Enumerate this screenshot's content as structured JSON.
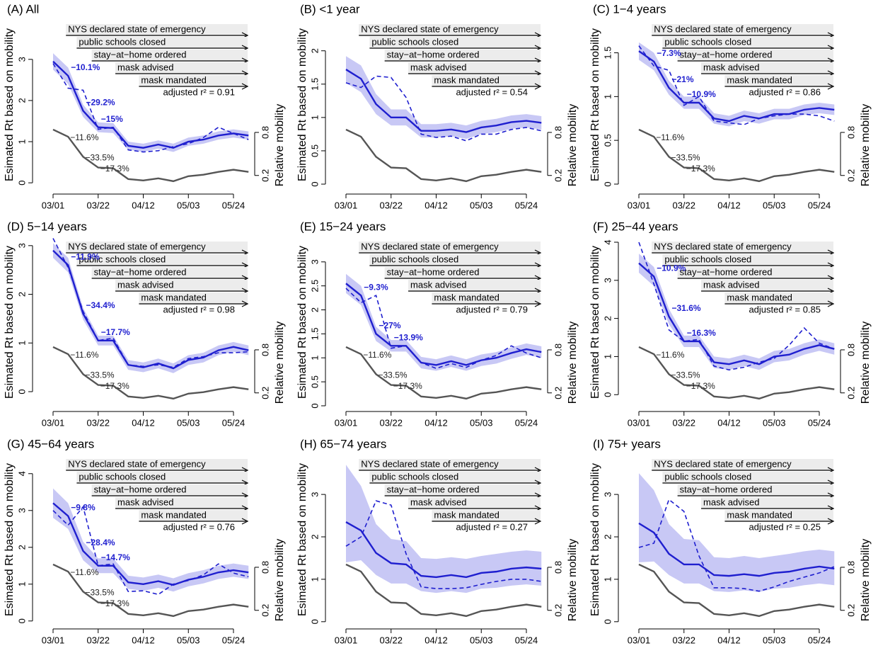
{
  "shared": {
    "categories": [
      "03/01",
      null,
      null,
      "03/22",
      null,
      null,
      "04/12",
      null,
      null,
      "05/03",
      null,
      null,
      "05/24",
      null
    ],
    "ylabel": "Esimated Rt based on mobility",
    "y2label": "Relative mobility",
    "events": [
      {
        "label": "NYS declared state of emergency",
        "start": "03/07"
      },
      {
        "label": "public schools closed",
        "start": "03/12"
      },
      {
        "label": "stay−at−home ordered",
        "start": "03/19"
      },
      {
        "label": "mask advised",
        "start": "03/30"
      },
      {
        "label": "mask mandated",
        "start": "04/10"
      }
    ]
  },
  "chart_data": [
    {
      "type": "line",
      "title": "(A) All",
      "ylim": [
        -0.17,
        3.84
      ],
      "yticks": [
        0,
        1,
        2,
        3
      ],
      "y2lim": [
        0,
        2.3
      ],
      "y2ticks": [
        0.2,
        0.8
      ],
      "r2_label": "adjusted r² = 0.91",
      "band": {
        "color": "#c8c8f5",
        "lower": [
          2.75,
          2.4,
          1.6,
          1.23,
          1.21,
          0.8,
          0.75,
          0.83,
          0.75,
          0.9,
          0.95,
          1.05,
          1.1,
          1.05
        ],
        "upper": [
          3.15,
          2.8,
          1.9,
          1.47,
          1.45,
          1.0,
          0.95,
          1.03,
          0.95,
          1.1,
          1.15,
          1.25,
          1.3,
          1.25
        ]
      },
      "series": [
        {
          "color": "#555555",
          "axis": "y2",
          "values": [
            0.84,
            0.74,
            0.46,
            0.31,
            0.3,
            0.15,
            0.13,
            0.16,
            0.12,
            0.19,
            0.21,
            0.25,
            0.28,
            0.25
          ]
        },
        {
          "color": "#1f1fcf",
          "dash": true,
          "values": [
            2.9,
            2.3,
            2.25,
            1.3,
            1.35,
            0.8,
            0.75,
            0.78,
            0.88,
            0.95,
            1.1,
            1.35,
            1.2,
            1.05
          ]
        },
        {
          "color": "#1f1fcf",
          "values": [
            2.95,
            2.6,
            1.75,
            1.35,
            1.33,
            0.9,
            0.85,
            0.93,
            0.85,
            1.0,
            1.05,
            1.15,
            1.2,
            1.15
          ]
        }
      ],
      "rt_labels": [
        "−10.1%",
        "−29.2%",
        "−15%"
      ],
      "mobility_labels": [
        "−11.6%",
        "−33.5%",
        "−17.3%"
      ]
    },
    {
      "type": "line",
      "title": "(B) <1 year",
      "ylim": [
        -0.085,
        2.39
      ],
      "yticks": [
        0,
        0.5,
        1,
        1.5,
        2
      ],
      "y2lim": [
        0,
        2.3
      ],
      "y2ticks": [
        0.2,
        0.8
      ],
      "r2_label": "adjusted r² = 0.54",
      "band": {
        "color": "#c8c8f5",
        "lower": [
          1.52,
          1.38,
          1.05,
          0.88,
          0.88,
          0.7,
          0.7,
          0.72,
          0.68,
          0.75,
          0.78,
          0.83,
          0.85,
          0.82
        ],
        "upper": [
          1.92,
          1.78,
          1.35,
          1.12,
          1.12,
          0.9,
          0.9,
          0.92,
          0.88,
          0.95,
          0.98,
          1.03,
          1.05,
          1.02
        ]
      },
      "series": [
        {
          "color": "#555555",
          "axis": "y2",
          "values": [
            0.84,
            0.74,
            0.46,
            0.31,
            0.3,
            0.15,
            0.13,
            0.16,
            0.12,
            0.19,
            0.21,
            0.25,
            0.28,
            0.25
          ]
        },
        {
          "color": "#1f1fcf",
          "dash": true,
          "values": [
            1.52,
            1.45,
            1.62,
            1.6,
            1.3,
            0.75,
            0.7,
            0.72,
            0.65,
            0.75,
            0.75,
            0.82,
            0.85,
            0.8
          ]
        },
        {
          "color": "#1f1fcf",
          "values": [
            1.72,
            1.58,
            1.2,
            1.0,
            1.0,
            0.8,
            0.8,
            0.82,
            0.78,
            0.85,
            0.88,
            0.93,
            0.95,
            0.92
          ]
        }
      ],
      "rt_labels": [],
      "mobility_labels": []
    },
    {
      "type": "line",
      "title": "(C) 1−4 years",
      "ylim": [
        -0.065,
        1.82
      ],
      "yticks": [
        0,
        0.5,
        1,
        1.5
      ],
      "y2lim": [
        0,
        2.3
      ],
      "y2ticks": [
        0.2,
        0.8
      ],
      "r2_label": "adjusted r² = 0.86",
      "band": {
        "color": "#c8c8f5",
        "lower": [
          1.42,
          1.3,
          1.02,
          0.86,
          0.86,
          0.69,
          0.66,
          0.72,
          0.69,
          0.74,
          0.74,
          0.79,
          0.81,
          0.79
        ],
        "upper": [
          1.62,
          1.5,
          1.18,
          1.0,
          1.0,
          0.81,
          0.78,
          0.84,
          0.81,
          0.86,
          0.86,
          0.91,
          0.93,
          0.91
        ]
      },
      "series": [
        {
          "color": "#555555",
          "axis": "y2",
          "values": [
            0.84,
            0.74,
            0.46,
            0.31,
            0.3,
            0.15,
            0.13,
            0.16,
            0.12,
            0.19,
            0.21,
            0.25,
            0.28,
            0.25
          ]
        },
        {
          "color": "#1f1fcf",
          "dash": true,
          "values": [
            1.58,
            1.35,
            1.3,
            0.9,
            1.0,
            0.72,
            0.7,
            0.68,
            0.75,
            0.78,
            0.8,
            0.8,
            0.78,
            0.72
          ]
        },
        {
          "color": "#1f1fcf",
          "values": [
            1.52,
            1.4,
            1.1,
            0.93,
            0.93,
            0.75,
            0.72,
            0.78,
            0.75,
            0.8,
            0.8,
            0.85,
            0.87,
            0.85
          ]
        }
      ],
      "rt_labels": [
        "−7.3%",
        "−21%",
        "−10.9%"
      ],
      "mobility_labels": [
        "−11.6%",
        "−33.5%",
        "−17.3%"
      ]
    },
    {
      "type": "line",
      "title": "(D) 5−14 years",
      "ylim": [
        -0.32,
        3.07
      ],
      "yticks": [
        0,
        1,
        2,
        3
      ],
      "y2lim": [
        0,
        2.3
      ],
      "y2ticks": [
        0.2,
        0.8
      ],
      "r2_label": "adjusted r² = 0.98",
      "band": {
        "color": "#c8c8f5",
        "lower": [
          2.75,
          2.45,
          1.48,
          0.95,
          0.95,
          0.45,
          0.4,
          0.48,
          0.38,
          0.55,
          0.6,
          0.75,
          0.82,
          0.75
        ],
        "upper": [
          3.05,
          2.75,
          1.72,
          1.15,
          1.15,
          0.65,
          0.6,
          0.68,
          0.58,
          0.75,
          0.8,
          0.95,
          1.02,
          0.95
        ]
      },
      "series": [
        {
          "color": "#555555",
          "axis": "y2",
          "values": [
            0.84,
            0.74,
            0.46,
            0.31,
            0.3,
            0.15,
            0.13,
            0.16,
            0.12,
            0.19,
            0.21,
            0.25,
            0.28,
            0.25
          ]
        },
        {
          "color": "#1f1fcf",
          "dash": true,
          "values": [
            3.15,
            2.55,
            1.65,
            1.05,
            1.1,
            0.55,
            0.52,
            0.55,
            0.5,
            0.68,
            0.72,
            0.8,
            0.8,
            0.82
          ]
        },
        {
          "color": "#1f1fcf",
          "values": [
            2.9,
            2.6,
            1.6,
            1.05,
            1.05,
            0.55,
            0.5,
            0.58,
            0.48,
            0.65,
            0.7,
            0.85,
            0.92,
            0.85
          ]
        }
      ],
      "rt_labels": [
        "−11.9%",
        "−34.4%",
        "−17.7%"
      ],
      "mobility_labels": [
        "−11.6%",
        "−33.5%",
        "−17.3%"
      ]
    },
    {
      "type": "line",
      "title": "(E) 15−24 years",
      "ylim": [
        -0.03,
        3.41
      ],
      "yticks": [
        0,
        0.5,
        1,
        1.5,
        2,
        2.5,
        3
      ],
      "y2lim": [
        0,
        2.3
      ],
      "y2ticks": [
        0.2,
        0.8
      ],
      "r2_label": "adjusted r² = 0.79",
      "band": {
        "color": "#c8c8f5",
        "lower": [
          2.35,
          2.1,
          1.35,
          1.13,
          1.13,
          0.78,
          0.73,
          0.81,
          0.73,
          0.83,
          0.88,
          0.98,
          1.06,
          1.0
        ],
        "upper": [
          2.75,
          2.5,
          1.65,
          1.37,
          1.37,
          1.02,
          0.97,
          1.05,
          0.97,
          1.07,
          1.12,
          1.22,
          1.3,
          1.24
        ]
      },
      "series": [
        {
          "color": "#555555",
          "axis": "y2",
          "values": [
            0.84,
            0.74,
            0.46,
            0.31,
            0.3,
            0.15,
            0.13,
            0.16,
            0.12,
            0.19,
            0.21,
            0.25,
            0.28,
            0.25
          ]
        },
        {
          "color": "#1f1fcf",
          "dash": true,
          "values": [
            2.45,
            2.15,
            2.3,
            1.2,
            1.25,
            0.9,
            0.78,
            0.88,
            0.8,
            0.95,
            1.05,
            1.25,
            1.1,
            1.0
          ]
        },
        {
          "color": "#1f1fcf",
          "values": [
            2.55,
            2.3,
            1.5,
            1.25,
            1.25,
            0.9,
            0.85,
            0.93,
            0.85,
            0.95,
            1.0,
            1.1,
            1.18,
            1.12
          ]
        }
      ],
      "rt_labels": [
        "−9.3%",
        "−27%",
        "−13.9%"
      ],
      "mobility_labels": [
        "−11.6%",
        "−33.5%",
        "−17.3%"
      ]
    },
    {
      "type": "line",
      "title": "(F) 25−44 years",
      "ylim": [
        -0.33,
        4.0
      ],
      "yticks": [
        0,
        1,
        2,
        3,
        4
      ],
      "y2lim": [
        0,
        2.3
      ],
      "y2ticks": [
        0.2,
        0.8
      ],
      "r2_label": "adjusted r² = 0.85",
      "band": {
        "color": "#c8c8f5",
        "lower": [
          3.2,
          2.85,
          1.85,
          1.25,
          1.25,
          0.7,
          0.65,
          0.75,
          0.65,
          0.85,
          0.9,
          1.05,
          1.15,
          1.05
        ],
        "upper": [
          3.7,
          3.35,
          2.25,
          1.55,
          1.55,
          1.0,
          0.95,
          1.05,
          0.95,
          1.15,
          1.2,
          1.35,
          1.45,
          1.35
        ]
      },
      "series": [
        {
          "color": "#555555",
          "axis": "y2",
          "values": [
            0.84,
            0.74,
            0.46,
            0.31,
            0.3,
            0.15,
            0.13,
            0.16,
            0.12,
            0.19,
            0.21,
            0.25,
            0.28,
            0.25
          ]
        },
        {
          "color": "#1f1fcf",
          "dash": true,
          "values": [
            4.0,
            2.9,
            1.7,
            1.4,
            1.45,
            0.75,
            0.65,
            0.72,
            0.85,
            0.95,
            1.3,
            1.75,
            1.35,
            1.2
          ]
        },
        {
          "color": "#1f1fcf",
          "values": [
            3.45,
            3.1,
            2.05,
            1.4,
            1.4,
            0.85,
            0.8,
            0.9,
            0.8,
            1.0,
            1.05,
            1.2,
            1.3,
            1.2
          ]
        }
      ],
      "rt_labels": [
        "−10.9%",
        "−31.6%",
        "−16.3%"
      ],
      "mobility_labels": [
        "−11.6%",
        "−33.5%",
        "−17.3%"
      ]
    },
    {
      "type": "line",
      "title": "(G) 45−64 years",
      "ylim": [
        -0.1,
        4.38
      ],
      "yticks": [
        0,
        1,
        2,
        3,
        4
      ],
      "y2lim": [
        0,
        2.3
      ],
      "y2ticks": [
        0.2,
        0.8
      ],
      "r2_label": "adjusted r² = 0.76",
      "band": {
        "color": "#c8c8f5",
        "lower": [
          2.8,
          2.5,
          1.65,
          1.3,
          1.3,
          0.87,
          0.82,
          0.9,
          0.8,
          0.94,
          1.02,
          1.14,
          1.2,
          1.14
        ],
        "upper": [
          3.6,
          3.2,
          2.15,
          1.7,
          1.7,
          1.23,
          1.18,
          1.26,
          1.16,
          1.3,
          1.38,
          1.5,
          1.56,
          1.5
        ]
      },
      "series": [
        {
          "color": "#555555",
          "axis": "y2",
          "values": [
            0.84,
            0.74,
            0.46,
            0.31,
            0.3,
            0.15,
            0.13,
            0.16,
            0.12,
            0.19,
            0.21,
            0.25,
            0.28,
            0.25
          ]
        },
        {
          "color": "#1f1fcf",
          "dash": true,
          "values": [
            3.0,
            2.6,
            3.1,
            1.5,
            1.55,
            0.8,
            0.82,
            0.72,
            1.0,
            1.1,
            1.25,
            1.55,
            1.3,
            1.2
          ]
        },
        {
          "color": "#1f1fcf",
          "values": [
            3.2,
            2.85,
            1.9,
            1.5,
            1.5,
            1.05,
            1.0,
            1.08,
            0.98,
            1.12,
            1.2,
            1.32,
            1.38,
            1.32
          ]
        }
      ],
      "rt_labels": [
        "−9.8%",
        "−28.4%",
        "−14.7%"
      ],
      "mobility_labels": [
        "−11.6%",
        "−33.5%",
        "−17.3%"
      ]
    },
    {
      "type": "line",
      "title": "(H) 65−74 years",
      "ylim": [
        -0.07,
        3.82
      ],
      "yticks": [
        0,
        1,
        2,
        3
      ],
      "y2lim": [
        0,
        2.3
      ],
      "y2ticks": [
        0.2,
        0.8
      ],
      "r2_label": "adjusted r² = 0.27",
      "band": {
        "color": "#c8c8f5",
        "lower": [
          1.4,
          1.45,
          1.1,
          0.9,
          0.9,
          0.72,
          0.68,
          0.72,
          0.68,
          0.78,
          0.8,
          0.85,
          0.88,
          0.85
        ],
        "upper": [
          3.7,
          3.2,
          2.3,
          1.95,
          1.9,
          1.5,
          1.48,
          1.52,
          1.48,
          1.55,
          1.6,
          1.65,
          1.68,
          1.65
        ]
      },
      "series": [
        {
          "color": "#555555",
          "axis": "y2",
          "values": [
            0.84,
            0.74,
            0.46,
            0.31,
            0.3,
            0.15,
            0.13,
            0.16,
            0.12,
            0.19,
            0.21,
            0.25,
            0.28,
            0.25
          ]
        },
        {
          "color": "#1f1fcf",
          "dash": true,
          "values": [
            1.78,
            2.0,
            2.85,
            2.75,
            1.6,
            0.82,
            0.78,
            0.78,
            0.8,
            0.88,
            0.95,
            1.0,
            1.0,
            0.95
          ]
        },
        {
          "color": "#1f1fcf",
          "values": [
            2.35,
            2.15,
            1.62,
            1.38,
            1.35,
            1.08,
            1.05,
            1.1,
            1.05,
            1.15,
            1.18,
            1.25,
            1.28,
            1.25
          ]
        }
      ],
      "rt_labels": [],
      "mobility_labels": []
    },
    {
      "type": "line",
      "title": "(I) 75+ years",
      "ylim": [
        -0.07,
        3.82
      ],
      "yticks": [
        0,
        1,
        2,
        3
      ],
      "y2lim": [
        0,
        2.3
      ],
      "y2ticks": [
        0.2,
        0.8
      ],
      "r2_label": "adjusted r² = 0.25",
      "band": {
        "color": "#c8c8f5",
        "lower": [
          1.4,
          1.42,
          1.1,
          0.9,
          0.9,
          0.72,
          0.7,
          0.74,
          0.7,
          0.78,
          0.8,
          0.86,
          0.9,
          0.86
        ],
        "upper": [
          3.5,
          3.1,
          2.3,
          1.95,
          1.92,
          1.52,
          1.5,
          1.55,
          1.5,
          1.55,
          1.6,
          1.66,
          1.7,
          1.66
        ]
      },
      "series": [
        {
          "color": "#555555",
          "axis": "y2",
          "values": [
            0.84,
            0.74,
            0.46,
            0.31,
            0.3,
            0.15,
            0.13,
            0.16,
            0.12,
            0.19,
            0.21,
            0.25,
            0.28,
            0.25
          ]
        },
        {
          "color": "#1f1fcf",
          "dash": true,
          "values": [
            1.75,
            1.85,
            2.88,
            2.6,
            1.55,
            0.8,
            0.8,
            0.78,
            0.72,
            0.82,
            0.95,
            1.05,
            1.15,
            1.3
          ]
        },
        {
          "color": "#1f1fcf",
          "values": [
            2.32,
            2.1,
            1.6,
            1.35,
            1.35,
            1.1,
            1.08,
            1.12,
            1.08,
            1.15,
            1.18,
            1.25,
            1.3,
            1.25
          ]
        }
      ],
      "rt_labels": [],
      "mobility_labels": []
    }
  ]
}
